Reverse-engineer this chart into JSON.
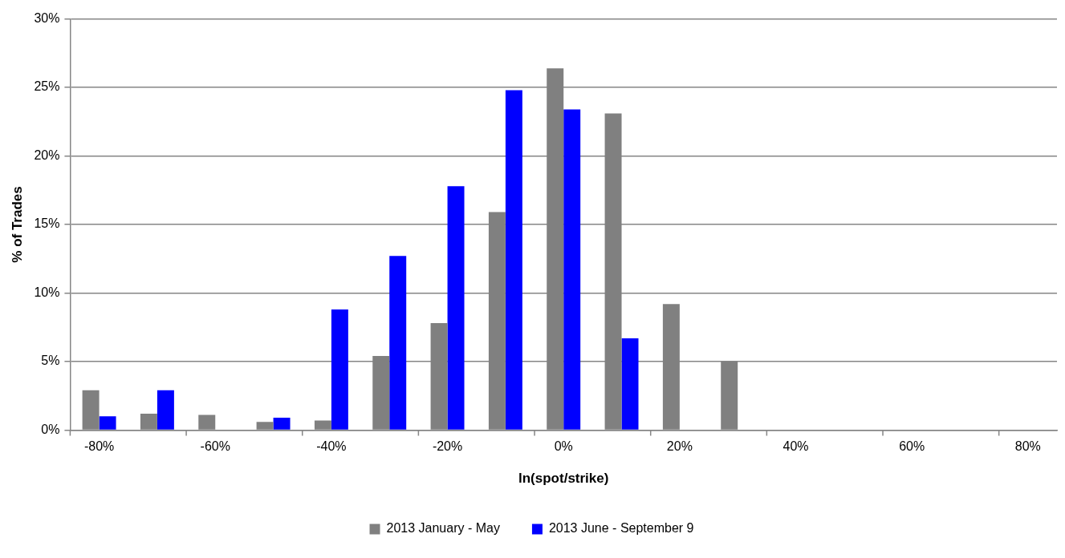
{
  "chart_data": {
    "type": "bar",
    "xlabel": "ln(spot/strike)",
    "ylabel": "% of Trades",
    "categories": [
      "-80%",
      null,
      "-60%",
      null,
      "-40%",
      null,
      "-20%",
      null,
      "0%",
      null,
      "20%",
      null,
      "40%",
      null,
      "60%",
      null,
      "80%"
    ],
    "series": [
      {
        "name": "2013 January - May",
        "color": "#808080",
        "values": [
          2.9,
          1.2,
          1.1,
          0.6,
          0.7,
          5.4,
          7.8,
          15.9,
          26.4,
          23.1,
          9.2,
          5.0,
          0,
          0,
          0,
          0,
          0
        ]
      },
      {
        "name": "2013 June - September 9",
        "color": "#0000ff",
        "values": [
          1.0,
          2.9,
          0,
          0.9,
          8.8,
          12.7,
          17.8,
          24.8,
          23.4,
          6.7,
          0,
          0,
          0,
          0,
          0,
          0,
          0
        ]
      }
    ],
    "ylim": [
      0,
      30
    ],
    "yticks": [
      {
        "value": 0,
        "label": "0%"
      },
      {
        "value": 5,
        "label": "5%"
      },
      {
        "value": 10,
        "label": "10%"
      },
      {
        "value": 15,
        "label": "15%"
      },
      {
        "value": 20,
        "label": "20%"
      },
      {
        "value": 25,
        "label": "25%"
      },
      {
        "value": 30,
        "label": "30%"
      }
    ],
    "grid": "y",
    "legend": "bottom"
  }
}
